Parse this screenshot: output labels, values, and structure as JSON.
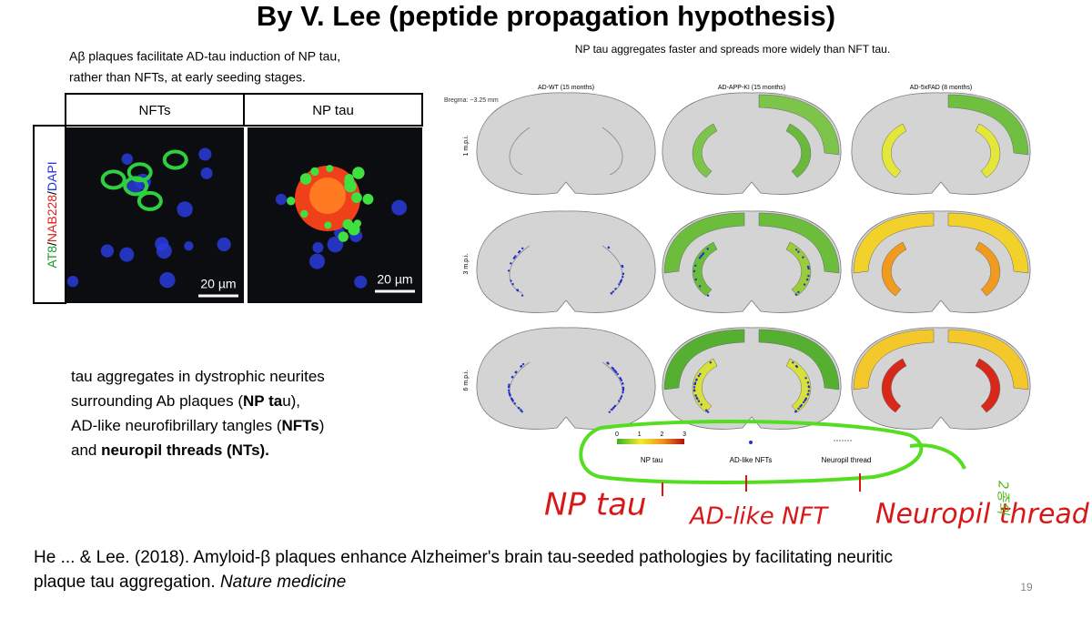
{
  "title": "By V. Lee (peptide propagation hypothesis)",
  "left_caption": [
    "Aβ plaques facilitate AD-tau induction of NP tau,",
    "rather than NFTs, at early seeding stages."
  ],
  "micrograph": {
    "columns": [
      "NFTs",
      "NP tau"
    ],
    "stain": [
      "AT8",
      "/",
      "NAB228",
      "/",
      "DAPI"
    ],
    "scale_bars": [
      "20 µm",
      "20 µm"
    ]
  },
  "right_caption": "NP tau aggregates faster and spreads more widely than NFT tau.",
  "brain_figure": {
    "columns": [
      "AD-WT (15 months)",
      "AD-APP-KI (15 months)",
      "AD-5xFAD (8 months)"
    ],
    "bregma": "Bregma: −3.25 mm",
    "rows": [
      "1 m.p.i.",
      "3 m.p.i.",
      "6 m.p.i."
    ],
    "scale_ticks": [
      "0",
      "1",
      "2",
      "3"
    ],
    "legend": [
      "NP tau",
      "AD-like NFTs",
      "Neuropil thread"
    ]
  },
  "handwriting": [
    "NP tau",
    "AD-like NFT",
    "Neuropil thread",
    "2종의"
  ],
  "description": [
    [
      {
        "text": "tau aggregates in dystrophic neurites",
        "bold": false
      }
    ],
    [
      {
        "text": "surrounding Ab plaques (",
        "bold": false
      },
      {
        "text": "NP ta",
        "bold": true
      },
      {
        "text": "u),",
        "bold": false
      }
    ],
    [
      {
        "text": "AD-like neurofibrillary tangles (",
        "bold": false
      },
      {
        "text": "NFTs",
        "bold": true
      },
      {
        "text": ")",
        "bold": false
      }
    ],
    [
      {
        "text": "and ",
        "bold": false
      },
      {
        "text": "neuropil threads (NTs).",
        "bold": true
      }
    ]
  ],
  "citation": [
    [
      {
        "text": "He ... & Lee. (2018). Amyloid-β plaques enhance Alzheimer's brain tau-seeded pathologies by facilitating neuritic",
        "italic": false
      }
    ],
    [
      {
        "text": "plaque tau aggregation. ",
        "italic": false
      },
      {
        "text": "Nature medicine",
        "italic": true
      }
    ]
  ],
  "page_number": "19"
}
